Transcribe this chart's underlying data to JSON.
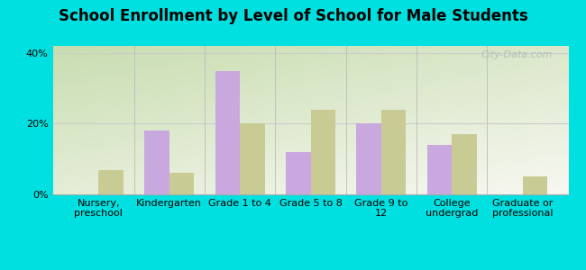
{
  "title": "School Enrollment by Level of School for Male Students",
  "categories": [
    "Nursery,\npreschool",
    "Kindergarten",
    "Grade 1 to 4",
    "Grade 5 to 8",
    "Grade 9 to\n12",
    "College\nundergrad",
    "Graduate or\nprofessional"
  ],
  "hollister": [
    0,
    18,
    35,
    12,
    20,
    14,
    0
  ],
  "missouri": [
    7,
    6,
    20,
    24,
    24,
    17,
    5
  ],
  "hollister_color": "#c9a8e0",
  "missouri_color": "#c8cc94",
  "background_outer": "#00e0e0",
  "bg_top_left": "#c8ddb0",
  "bg_bottom_right": "#f8f8f2",
  "title_fontsize": 12,
  "tick_fontsize": 8,
  "legend_fontsize": 9,
  "ylim": [
    0,
    42
  ],
  "yticks": [
    0,
    20,
    40
  ],
  "ytick_labels": [
    "0%",
    "20%",
    "40%"
  ],
  "bar_width": 0.35,
  "watermark": "City-Data.com"
}
